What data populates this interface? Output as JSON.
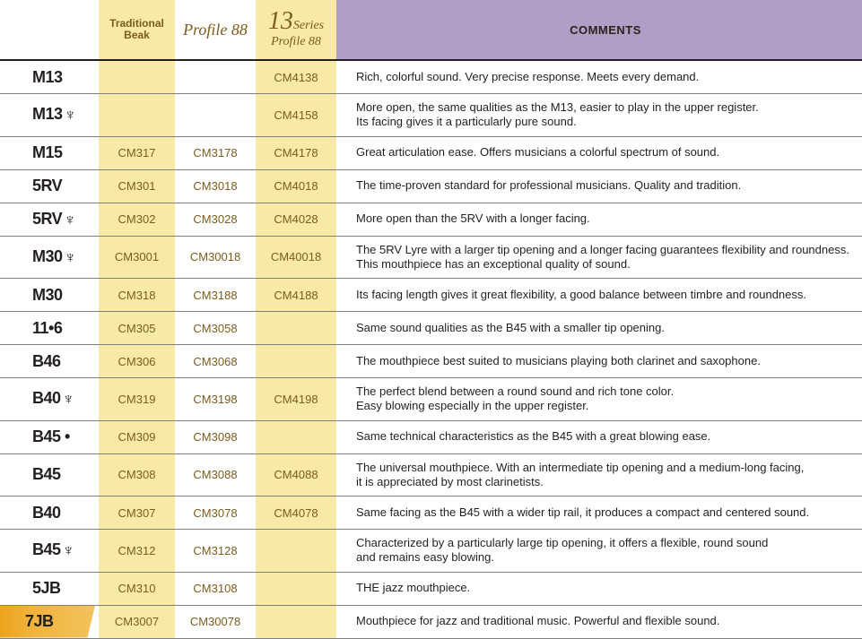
{
  "colors": {
    "cream": "#f8e9a7",
    "lavender": "#b29dc7",
    "brown_text": "#7a5c1e",
    "body_text": "#231f20",
    "rule": "#808080",
    "highlight_start": "#eca41d",
    "highlight_end": "#f3c35c",
    "background": "#ffffff"
  },
  "fonts": {
    "body": "Trebuchet MS, Arial, sans-serif",
    "model": "Arial Black / Impact condensed",
    "script_header": "Georgia italic",
    "model_size_pt": 18,
    "code_size_pt": 13,
    "comment_size_pt": 13,
    "header_comments_size_pt": 13,
    "header_13_big_pt": 28
  },
  "headers": {
    "traditional": "Traditional\nBeak",
    "profile88": "Profile 88",
    "series13_main": "13",
    "series13_suffix": "Series",
    "series13_sub": "Profile 88",
    "comments": "COMMENTS"
  },
  "lyre_glyph": "♆",
  "dot_glyph": "•",
  "rows": [
    {
      "model": "M13",
      "lyre": false,
      "dot": false,
      "trad": "",
      "p88": "",
      "s13": "CM4138",
      "comment": "Rich, colorful sound. Very precise response. Meets every demand.",
      "highlight": false
    },
    {
      "model": "M13",
      "lyre": true,
      "dot": false,
      "trad": "",
      "p88": "",
      "s13": "CM4158",
      "comment": "More open, the same qualities as the M13, easier to play in the upper register.\nIts facing gives it a particularly pure sound.",
      "highlight": false
    },
    {
      "model": "M15",
      "lyre": false,
      "dot": false,
      "trad": "CM317",
      "p88": "CM3178",
      "s13": "CM4178",
      "comment": "Great articulation ease. Offers musicians a colorful spectrum of sound.",
      "highlight": false
    },
    {
      "model": "5RV",
      "lyre": false,
      "dot": false,
      "trad": "CM301",
      "p88": "CM3018",
      "s13": "CM4018",
      "comment": "The time-proven standard for professional musicians. Quality and tradition.",
      "highlight": false
    },
    {
      "model": "5RV",
      "lyre": true,
      "dot": false,
      "trad": "CM302",
      "p88": "CM3028",
      "s13": "CM4028",
      "comment": "More open than the 5RV with a longer facing.",
      "highlight": false
    },
    {
      "model": "M30",
      "lyre": true,
      "dot": false,
      "trad": "CM3001",
      "p88": "CM30018",
      "s13": "CM40018",
      "comment": "The 5RV Lyre with a larger tip opening and a longer facing guarantees flexibility and roundness.\nThis mouthpiece has an exceptional quality of sound.",
      "highlight": false
    },
    {
      "model": "M30",
      "lyre": false,
      "dot": false,
      "trad": "CM318",
      "p88": "CM3188",
      "s13": "CM4188",
      "comment": "Its facing length gives it great flexibility, a good balance between timbre and roundness.",
      "highlight": false
    },
    {
      "model": "11•6",
      "lyre": false,
      "dot": false,
      "trad": "CM305",
      "p88": "CM3058",
      "s13": "",
      "comment": "Same sound qualities as the B45 with a smaller tip opening.",
      "highlight": false
    },
    {
      "model": "B46",
      "lyre": false,
      "dot": false,
      "trad": "CM306",
      "p88": "CM3068",
      "s13": "",
      "comment": "The mouthpiece best suited to musicians playing both clarinet and saxophone.",
      "highlight": false
    },
    {
      "model": "B40",
      "lyre": true,
      "dot": false,
      "trad": "CM319",
      "p88": "CM3198",
      "s13": "CM4198",
      "comment": "The perfect blend between a round sound and rich tone color.\nEasy blowing especially in the upper register.",
      "highlight": false
    },
    {
      "model": "B45",
      "lyre": false,
      "dot": true,
      "trad": "CM309",
      "p88": "CM3098",
      "s13": "",
      "comment": "Same technical characteristics as the B45 with a great blowing ease.",
      "highlight": false
    },
    {
      "model": "B45",
      "lyre": false,
      "dot": false,
      "trad": "CM308",
      "p88": "CM3088",
      "s13": "CM4088",
      "comment": "The universal mouthpiece. With an intermediate tip opening and a medium-long facing,\nit is appreciated by most clarinetists.",
      "highlight": false
    },
    {
      "model": "B40",
      "lyre": false,
      "dot": false,
      "trad": "CM307",
      "p88": "CM3078",
      "s13": "CM4078",
      "comment": "Same facing as the B45 with a wider tip rail, it produces a compact and centered sound.",
      "highlight": false
    },
    {
      "model": "B45",
      "lyre": true,
      "dot": false,
      "trad": "CM312",
      "p88": "CM3128",
      "s13": "",
      "comment": "Characterized by a particularly large tip opening, it offers a flexible, round sound\nand remains easy blowing.",
      "highlight": false
    },
    {
      "model": "5JB",
      "lyre": false,
      "dot": false,
      "trad": "CM310",
      "p88": "CM3108",
      "s13": "",
      "comment": "THE jazz mouthpiece.",
      "highlight": false
    },
    {
      "model": "7JB",
      "lyre": false,
      "dot": false,
      "trad": "CM3007",
      "p88": "CM30078",
      "s13": "",
      "comment": "Mouthpiece for jazz and traditional music. Powerful and flexible sound.",
      "highlight": true
    }
  ]
}
